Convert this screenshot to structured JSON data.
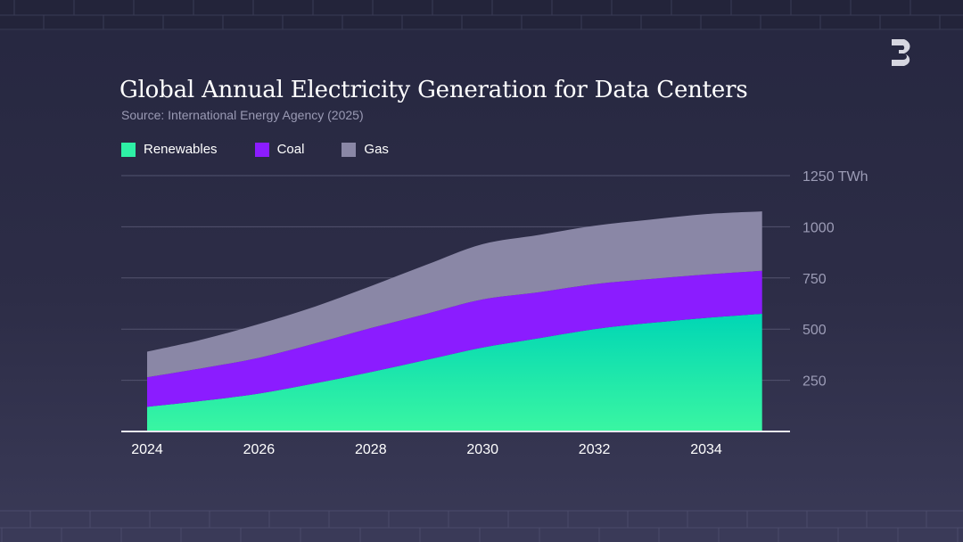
{
  "chart_data": {
    "type": "area",
    "stacked": true,
    "title": "Global Annual Electricity Generation for Data Centers",
    "subtitle": "Source:  International Energy Agency (2025)",
    "x": [
      2024,
      2025,
      2026,
      2027,
      2028,
      2029,
      2030,
      2031,
      2032,
      2033,
      2034,
      2035
    ],
    "x_ticks": [
      "2024",
      "2026",
      "2028",
      "2030",
      "2032",
      "2034"
    ],
    "y_ticks": [
      "250",
      "500",
      "750",
      "1000",
      "1250 TWh"
    ],
    "ylim": [
      0,
      1250
    ],
    "unit": "TWh",
    "series": [
      {
        "name": "Renewables",
        "color": "#2ef0a6",
        "values": [
          120,
          150,
          185,
          235,
          290,
          350,
          410,
          455,
          500,
          530,
          555,
          575
        ]
      },
      {
        "name": "Coal",
        "color": "#8b1cff",
        "values": [
          145,
          160,
          175,
          195,
          215,
          225,
          235,
          225,
          220,
          215,
          212,
          210
        ]
      },
      {
        "name": "Gas",
        "color": "#8a87a6",
        "values": [
          125,
          140,
          165,
          180,
          205,
          240,
          270,
          280,
          285,
          290,
          295,
          290
        ]
      }
    ],
    "grid": true,
    "legend": "top-left"
  },
  "logo": {
    "name": "brand-logo",
    "color": "#d6d6e0"
  }
}
